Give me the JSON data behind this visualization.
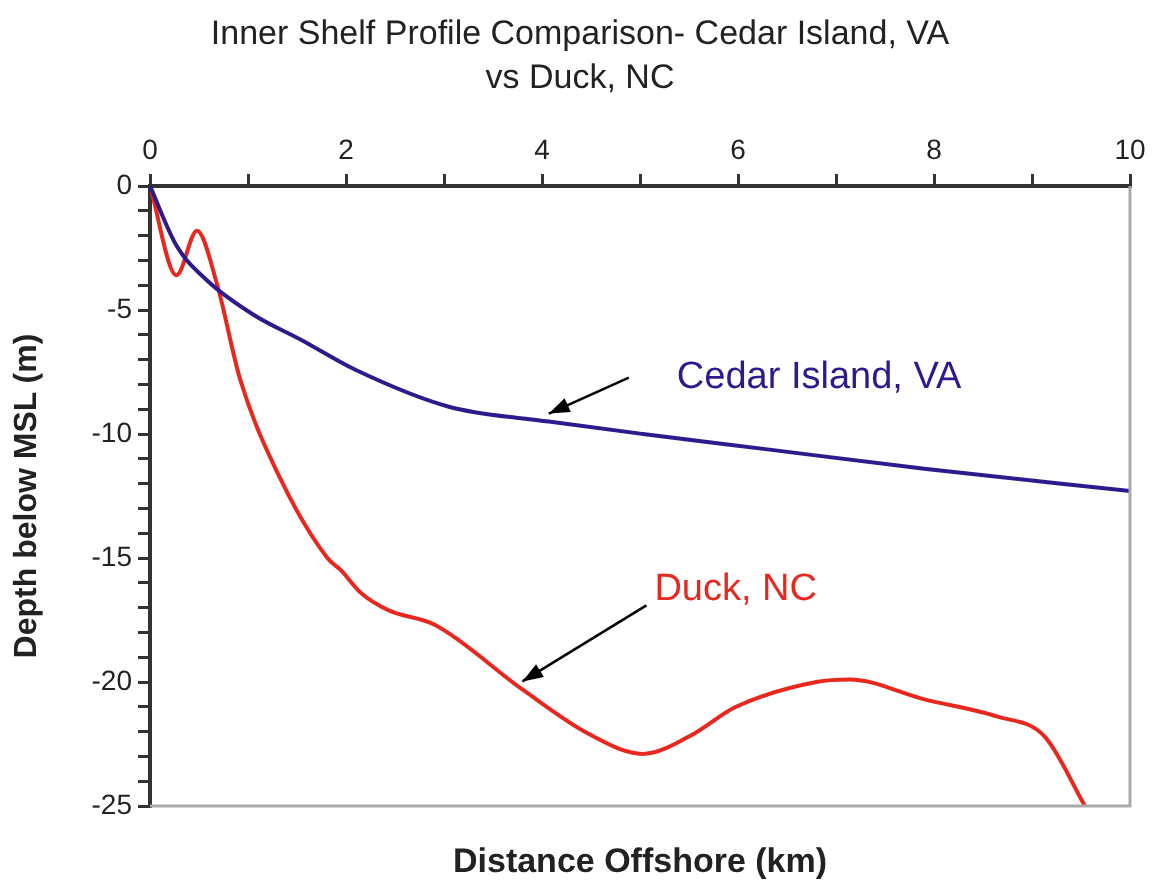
{
  "chart_data": {
    "type": "line",
    "title": "Inner Shelf Profile Comparison- Cedar Island, VA vs Duck, NC",
    "xlabel": "Distance Offshore (km)",
    "ylabel": "Depth below MSL (m)",
    "xlim": [
      0,
      10
    ],
    "xticks": [
      0,
      {
        "value": 1,
        "label": null
      },
      2,
      {
        "value": 3,
        "label": null
      },
      4,
      {
        "value": 5,
        "label": null
      },
      6,
      {
        "value": 7,
        "label": null
      },
      8,
      {
        "value": 9,
        "label": null
      },
      10
    ],
    "ylim": [
      -25,
      0
    ],
    "yticks": [
      {
        "value": -25,
        "label": "-25"
      },
      {
        "value": -24,
        "label": null
      },
      {
        "value": -23,
        "label": null
      },
      {
        "value": -22,
        "label": null
      },
      {
        "value": -21,
        "label": null
      },
      {
        "value": -20,
        "label": "-20"
      },
      {
        "value": -19,
        "label": null
      },
      {
        "value": -18,
        "label": null
      },
      {
        "value": -17,
        "label": null
      },
      {
        "value": -16,
        "label": null
      },
      {
        "value": -15,
        "label": "-15"
      },
      {
        "value": -14,
        "label": null
      },
      {
        "value": -13,
        "label": null
      },
      {
        "value": -12,
        "label": null
      },
      {
        "value": -11,
        "label": null
      },
      {
        "value": -10,
        "label": "-10"
      },
      {
        "value": -9,
        "label": null
      },
      {
        "value": -8,
        "label": null
      },
      {
        "value": -7,
        "label": null
      },
      {
        "value": -6,
        "label": null
      },
      {
        "value": -5,
        "label": "-5"
      },
      {
        "value": -4,
        "label": null
      },
      {
        "value": -3,
        "label": null
      },
      {
        "value": -2,
        "label": null
      },
      {
        "value": -1,
        "label": null
      },
      0
    ],
    "grid": false,
    "legend": false,
    "marker": "none",
    "line_style": "solid",
    "series": [
      {
        "name": "Cedar Island, VA",
        "color": "#2e1a8c",
        "x": [
          0,
          0.27,
          0.58,
          1.06,
          1.54,
          2.09,
          3.05,
          4.07,
          5.03,
          6.26,
          7.9,
          10
        ],
        "values": [
          0,
          -2.4,
          -3.8,
          -5.2,
          -6.2,
          -7.4,
          -8.9,
          -9.5,
          -10.0,
          -10.6,
          -11.4,
          -12.3
        ]
      },
      {
        "name": "Duck, NC",
        "color": "#e8281e",
        "x": [
          0,
          0.27,
          0.48,
          0.68,
          0.92,
          1.33,
          1.81,
          1.95,
          2.15,
          2.43,
          2.91,
          3.8,
          4.48,
          5.03,
          5.5,
          5.98,
          6.8,
          7.14,
          7.9,
          8.65,
          9.13,
          9.54
        ],
        "values": [
          0,
          -3.6,
          -1.8,
          -3.9,
          -7.8,
          -11.8,
          -15.0,
          -15.5,
          -16.4,
          -17.1,
          -17.7,
          -20.3,
          -22.1,
          -22.9,
          -22.2,
          -21.0,
          -20.0,
          -19.9,
          -20.7,
          -21.4,
          -22.2,
          -25
        ]
      }
    ]
  }
}
